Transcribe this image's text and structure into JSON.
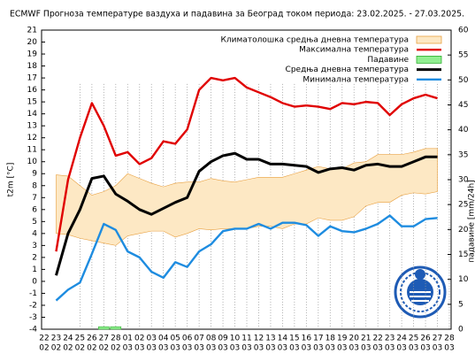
{
  "chart_data": {
    "type": "line",
    "title": "ECMWF Прогноза температуре ваздуха и падавина за Београд током периода: 23.02.2025. - 27.03.2025.",
    "y_label": "t2m [°C]",
    "y2_label": "падавине [mm/24h]",
    "categories": [
      "22",
      "23",
      "24",
      "25",
      "26",
      "27",
      "28",
      "01",
      "02",
      "03",
      "04",
      "05",
      "06",
      "07",
      "08",
      "09",
      "10",
      "11",
      "12",
      "13",
      "14",
      "15",
      "16",
      "17",
      "18",
      "19",
      "20",
      "21",
      "22",
      "23",
      "24",
      "25",
      "26",
      "27",
      "28"
    ],
    "category_months": [
      "02",
      "02",
      "02",
      "02",
      "02",
      "02",
      "02",
      "03",
      "03",
      "03",
      "03",
      "03",
      "03",
      "03",
      "03",
      "03",
      "03",
      "03",
      "03",
      "03",
      "03",
      "03",
      "03",
      "03",
      "03",
      "03",
      "03",
      "03",
      "03",
      "03",
      "03",
      "03",
      "03",
      "03",
      "03"
    ],
    "ylim": [
      -4,
      21
    ],
    "yticks": [
      -4,
      -3,
      -2,
      -1,
      0,
      1,
      2,
      3,
      4,
      5,
      6,
      7,
      8,
      9,
      10,
      11,
      12,
      13,
      14,
      15,
      16,
      17,
      18,
      19,
      20,
      21
    ],
    "y2lim": [
      0,
      60
    ],
    "y2ticks": [
      0,
      5,
      10,
      15,
      20,
      25,
      30,
      35,
      40,
      45,
      50,
      55,
      60
    ],
    "grid": true,
    "legend": "top-right",
    "band": {
      "name": "Климатолошка средња дневна температура",
      "color": "#fde8c4",
      "edge": "#e8a040",
      "upper": [
        null,
        8.9,
        8.8,
        8.0,
        7.2,
        7.5,
        8.0,
        9.0,
        8.6,
        8.2,
        7.9,
        8.2,
        8.3,
        8.3,
        8.6,
        8.4,
        8.3,
        8.5,
        8.7,
        8.7,
        8.7,
        9.0,
        9.3,
        9.6,
        9.4,
        9.4,
        9.9,
        10.0,
        10.6,
        10.6,
        10.6,
        10.8,
        11.1,
        11.1,
        null
      ],
      "lower": [
        null,
        4.0,
        3.9,
        3.6,
        3.4,
        3.2,
        3.0,
        3.8,
        4.0,
        4.2,
        4.2,
        3.7,
        4.0,
        4.4,
        4.3,
        4.4,
        4.4,
        4.4,
        4.6,
        4.6,
        4.4,
        4.8,
        4.8,
        5.3,
        5.1,
        5.1,
        5.4,
        6.3,
        6.6,
        6.6,
        7.2,
        7.4,
        7.3,
        7.5,
        null
      ]
    },
    "series": [
      {
        "name": "Максимална температура",
        "color": "#e00000",
        "values": [
          null,
          2.5,
          8.5,
          12.0,
          14.9,
          13.0,
          10.5,
          10.8,
          9.8,
          10.3,
          11.7,
          11.5,
          12.7,
          16.0,
          17.0,
          16.8,
          17.0,
          16.2,
          15.8,
          15.4,
          14.9,
          14.6,
          14.7,
          14.6,
          14.4,
          14.9,
          14.8,
          15.0,
          14.9,
          13.9,
          14.8,
          15.3,
          15.6,
          15.3,
          null
        ]
      },
      {
        "name": "Падавине",
        "color": "#90ee90",
        "edge": "#30b030",
        "axis": "y2",
        "kind": "bar",
        "values": [
          null,
          0,
          0,
          0,
          0,
          0.5,
          0.5,
          0,
          0,
          0,
          0,
          0,
          0,
          0,
          0,
          0,
          0,
          0,
          0,
          0,
          0,
          0,
          0,
          0,
          0,
          0,
          0,
          0,
          0,
          0,
          0,
          0,
          0,
          0,
          null
        ]
      },
      {
        "name": "Средња дневна температура",
        "color": "#000000",
        "values": [
          null,
          0.5,
          4.0,
          6.0,
          8.6,
          8.8,
          7.3,
          6.7,
          6.0,
          5.6,
          6.1,
          6.6,
          7.0,
          9.2,
          10.0,
          10.5,
          10.7,
          10.2,
          10.2,
          9.8,
          9.8,
          9.7,
          9.6,
          9.1,
          9.4,
          9.5,
          9.3,
          9.7,
          9.8,
          9.6,
          9.6,
          10.0,
          10.4,
          10.4,
          null
        ]
      },
      {
        "name": "Минимална температура",
        "color": "#1e8ce0",
        "values": [
          null,
          -1.6,
          -0.7,
          -0.1,
          2.3,
          4.8,
          4.3,
          2.5,
          2.0,
          0.8,
          0.3,
          1.6,
          1.2,
          2.5,
          3.1,
          4.2,
          4.4,
          4.4,
          4.8,
          4.4,
          4.9,
          4.9,
          4.7,
          3.8,
          4.6,
          4.2,
          4.1,
          4.4,
          4.8,
          5.5,
          4.6,
          4.6,
          5.2,
          5.3,
          null
        ]
      }
    ]
  }
}
